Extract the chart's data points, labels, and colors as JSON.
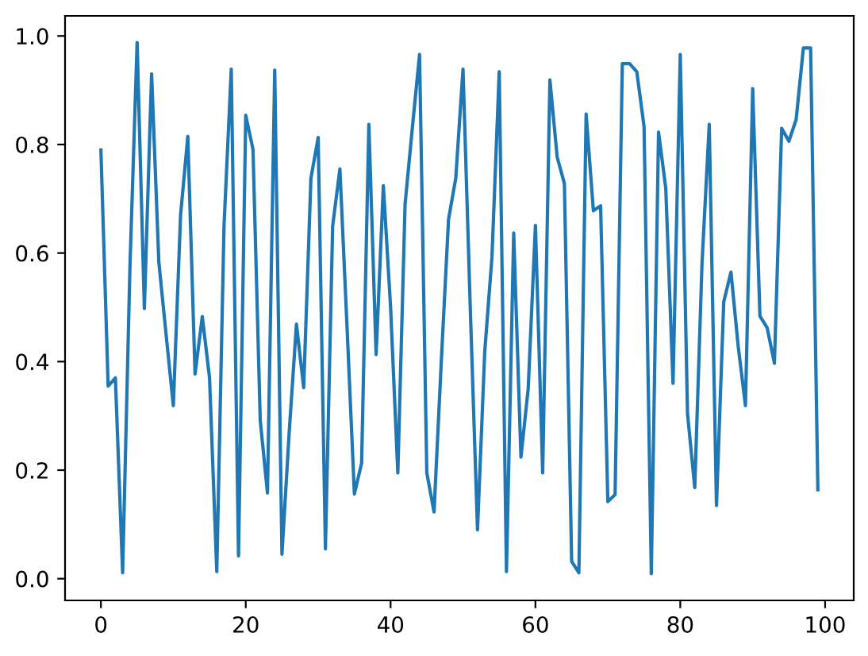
{
  "chart_data": {
    "type": "line",
    "color": "#1f77b4",
    "line_style": "solid",
    "marker": "none",
    "grid": false,
    "x": [
      0,
      1,
      2,
      3,
      4,
      5,
      6,
      7,
      8,
      9,
      10,
      11,
      12,
      13,
      14,
      15,
      16,
      17,
      18,
      19,
      20,
      21,
      22,
      23,
      24,
      25,
      26,
      27,
      28,
      29,
      30,
      31,
      32,
      33,
      34,
      35,
      36,
      37,
      38,
      39,
      40,
      41,
      42,
      43,
      44,
      45,
      46,
      47,
      48,
      49,
      50,
      51,
      52,
      53,
      54,
      55,
      56,
      57,
      58,
      59,
      60,
      61,
      62,
      63,
      64,
      65,
      66,
      67,
      68,
      69,
      70,
      71,
      72,
      73,
      74,
      75,
      76,
      77,
      78,
      79,
      80,
      81,
      82,
      83,
      84,
      85,
      86,
      87,
      88,
      89,
      90,
      91,
      92,
      93,
      94,
      95,
      96,
      97,
      98,
      99
    ],
    "values": [
      0.79,
      0.355,
      0.37,
      0.011,
      0.57,
      0.988,
      0.498,
      0.93,
      0.583,
      0.45,
      0.319,
      0.67,
      0.815,
      0.377,
      0.483,
      0.37,
      0.013,
      0.65,
      0.939,
      0.042,
      0.854,
      0.791,
      0.292,
      0.158,
      0.937,
      0.045,
      0.27,
      0.469,
      0.352,
      0.738,
      0.813,
      0.055,
      0.65,
      0.755,
      0.46,
      0.156,
      0.213,
      0.837,
      0.413,
      0.724,
      0.5,
      0.195,
      0.69,
      0.83,
      0.966,
      0.195,
      0.123,
      0.4,
      0.662,
      0.738,
      0.939,
      0.5,
      0.09,
      0.418,
      0.593,
      0.934,
      0.013,
      0.637,
      0.224,
      0.35,
      0.651,
      0.195,
      0.919,
      0.777,
      0.728,
      0.032,
      0.011,
      0.856,
      0.678,
      0.687,
      0.142,
      0.155,
      0.949,
      0.949,
      0.934,
      0.833,
      0.009,
      0.823,
      0.719,
      0.36,
      0.966,
      0.304,
      0.168,
      0.58,
      0.837,
      0.135,
      0.51,
      0.565,
      0.428,
      0.319,
      0.903,
      0.484,
      0.462,
      0.397,
      0.83,
      0.806,
      0.846,
      0.978,
      0.978,
      0.164
    ],
    "xlim": [
      -4.95,
      103.95
    ],
    "ylim": [
      -0.04,
      1.037
    ],
    "xticks": [
      0,
      20,
      40,
      60,
      80,
      100
    ],
    "yticks": [
      {
        "value": 0,
        "label": "0.0"
      },
      {
        "value": 0.2,
        "label": "0.2"
      },
      {
        "value": 0.4,
        "label": "0.4"
      },
      {
        "value": 0.6,
        "label": "0.6"
      },
      {
        "value": 0.8,
        "label": "0.8"
      },
      {
        "value": 1,
        "label": "1.0"
      }
    ]
  }
}
